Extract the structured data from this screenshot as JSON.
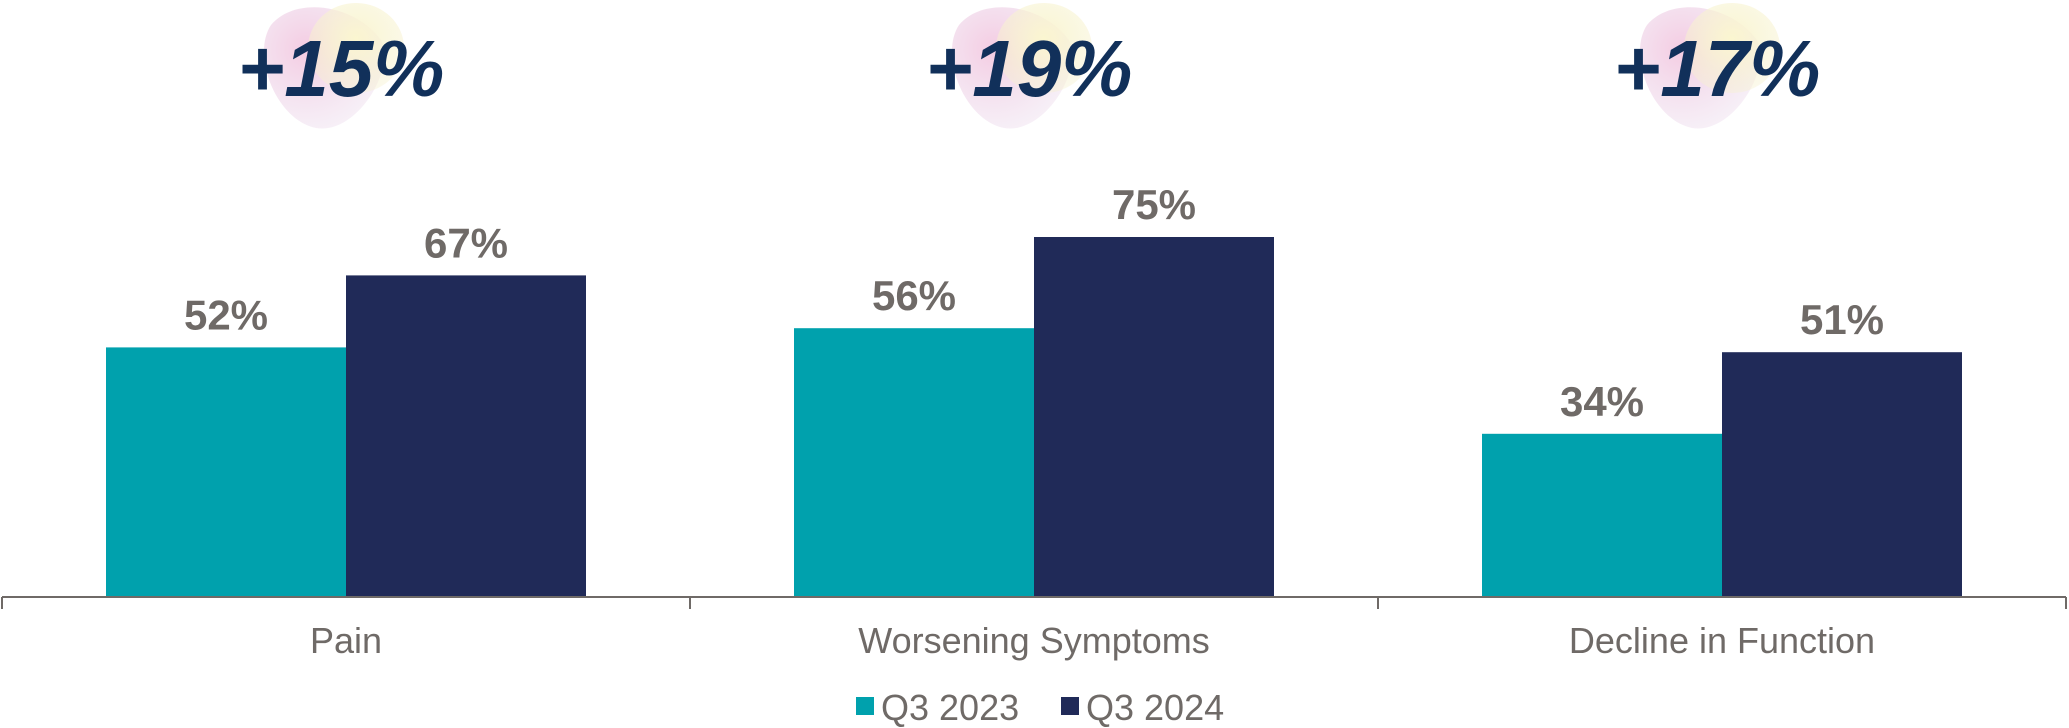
{
  "chart_data": {
    "type": "bar",
    "categories": [
      "Pain",
      "Worsening Symptoms",
      "Decline in Function"
    ],
    "series": [
      {
        "name": "Q3 2023",
        "values": [
          52,
          56,
          34
        ],
        "labels": [
          "52%",
          "56%",
          "34%"
        ]
      },
      {
        "name": "Q3 2024",
        "values": [
          67,
          75,
          51
        ],
        "labels": [
          "67%",
          "75%",
          "51%"
        ]
      }
    ],
    "changes": [
      "+15%",
      "+19%",
      "+17%"
    ],
    "ylim": [
      0,
      100
    ],
    "grid": false,
    "legend_position": "bottom-center",
    "colors": {
      "series": [
        "#00a1ad",
        "#202a58"
      ],
      "change_text": "#11305a",
      "labels": "#6f6a67",
      "axis": "#6f6a67"
    }
  }
}
